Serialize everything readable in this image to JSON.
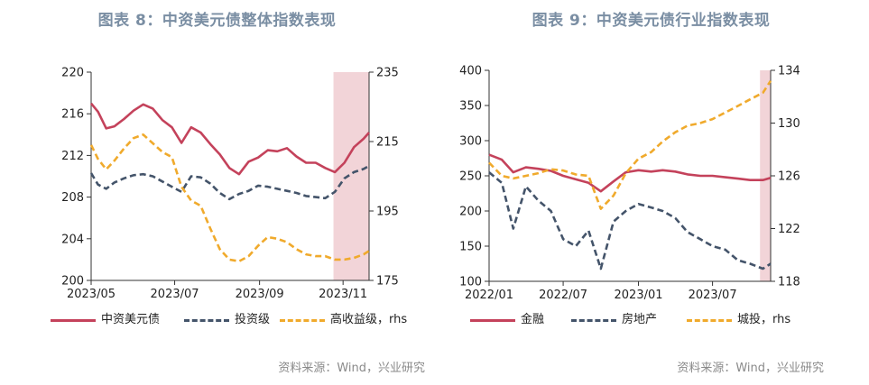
{
  "charts": [
    {
      "title": "图表 8：中资美元债整体指数表现",
      "source": "资料来源：Wind，兴业研究",
      "chart_data": {
        "type": "line",
        "x_ticks": [
          "2023/05",
          "2023/07",
          "2023/09",
          "2023/11"
        ],
        "x_range": [
          "2023-05-01",
          "2023-11-20"
        ],
        "x_tick_dates": [
          "2023-05-01",
          "2023-07-01",
          "2023-09-01",
          "2023-11-01"
        ],
        "y_left": {
          "ticks": [
            "200",
            "204",
            "208",
            "212",
            "216",
            "220"
          ],
          "min": 200,
          "max": 220
        },
        "y_right": {
          "ticks": [
            "175",
            "195",
            "215",
            "235"
          ],
          "min": 175,
          "max": 235
        },
        "highlight": {
          "from": "2023-10-25",
          "to": "2023-11-20",
          "color": "#f2d4d8"
        },
        "series": [
          {
            "name": "中资美元债",
            "axis": "left",
            "color": "#c4425b",
            "style": "solid",
            "x": [
              "2023-05-01",
              "2023-05-06",
              "2023-05-12",
              "2023-05-18",
              "2023-05-25",
              "2023-06-01",
              "2023-06-08",
              "2023-06-15",
              "2023-06-22",
              "2023-06-29",
              "2023-07-06",
              "2023-07-13",
              "2023-07-20",
              "2023-07-27",
              "2023-08-03",
              "2023-08-10",
              "2023-08-17",
              "2023-08-24",
              "2023-08-31",
              "2023-09-07",
              "2023-09-14",
              "2023-09-21",
              "2023-09-28",
              "2023-10-05",
              "2023-10-12",
              "2023-10-19",
              "2023-10-26",
              "2023-11-02",
              "2023-11-09",
              "2023-11-16",
              "2023-11-20"
            ],
            "values": [
              217,
              216.2,
              214.6,
              214.8,
              215.5,
              216.3,
              216.9,
              216.5,
              215.4,
              214.7,
              213.2,
              214.7,
              214.2,
              213.1,
              212.1,
              210.8,
              210.2,
              211.4,
              211.8,
              212.5,
              212.4,
              212.7,
              211.9,
              211.3,
              211.3,
              210.8,
              210.4,
              211.3,
              212.8,
              213.6,
              214.2
            ]
          },
          {
            "name": "投资级",
            "axis": "left",
            "color": "#44546a",
            "style": "dashed",
            "x": [
              "2023-05-01",
              "2023-05-06",
              "2023-05-12",
              "2023-05-18",
              "2023-05-25",
              "2023-06-01",
              "2023-06-08",
              "2023-06-15",
              "2023-06-22",
              "2023-06-29",
              "2023-07-06",
              "2023-07-13",
              "2023-07-20",
              "2023-07-27",
              "2023-08-03",
              "2023-08-10",
              "2023-08-17",
              "2023-08-24",
              "2023-08-31",
              "2023-09-07",
              "2023-09-14",
              "2023-09-21",
              "2023-09-28",
              "2023-10-05",
              "2023-10-12",
              "2023-10-19",
              "2023-10-26",
              "2023-11-02",
              "2023-11-09",
              "2023-11-16",
              "2023-11-20"
            ],
            "values": [
              210.3,
              209.2,
              208.8,
              209.4,
              209.8,
              210.1,
              210.2,
              210,
              209.5,
              209,
              208.5,
              210,
              209.9,
              209.3,
              208.4,
              207.8,
              208.3,
              208.6,
              209.1,
              209,
              208.8,
              208.6,
              208.4,
              208.1,
              208,
              207.9,
              208.5,
              209.8,
              210.4,
              210.7,
              211
            ]
          },
          {
            "name": "高收益级，rhs",
            "axis": "right",
            "color": "#f0aa2c",
            "style": "dashed",
            "x": [
              "2023-05-01",
              "2023-05-06",
              "2023-05-12",
              "2023-05-18",
              "2023-05-25",
              "2023-06-01",
              "2023-06-08",
              "2023-06-15",
              "2023-06-22",
              "2023-06-29",
              "2023-07-06",
              "2023-07-13",
              "2023-07-20",
              "2023-07-27",
              "2023-08-03",
              "2023-08-10",
              "2023-08-17",
              "2023-08-24",
              "2023-08-31",
              "2023-09-07",
              "2023-09-14",
              "2023-09-21",
              "2023-09-28",
              "2023-10-05",
              "2023-10-12",
              "2023-10-19",
              "2023-10-26",
              "2023-11-02",
              "2023-11-09",
              "2023-11-16",
              "2023-11-20"
            ],
            "values": [
              214,
              210,
              207,
              209.5,
              213,
              216,
              217,
              214.5,
              212,
              210.5,
              202,
              198,
              196.5,
              190,
              184,
              181,
              180.5,
              182,
              185,
              187.5,
              187,
              186,
              184,
              182.5,
              182,
              182,
              181,
              181,
              181.5,
              182.5,
              183.5
            ]
          }
        ]
      }
    },
    {
      "title": "图表 9：中资美元债行业指数表现",
      "source": "资料来源：Wind，兴业研究",
      "chart_data": {
        "type": "line",
        "x_ticks": [
          "2022/01",
          "2022/07",
          "2023/01",
          "2023/07"
        ],
        "x_range": [
          "2022-01-01",
          "2023-11-20"
        ],
        "x_tick_dates": [
          "2022-01-01",
          "2022-07-01",
          "2023-01-01",
          "2023-07-01"
        ],
        "y_left": {
          "ticks": [
            "100",
            "150",
            "200",
            "250",
            "300",
            "350",
            "400"
          ],
          "min": 100,
          "max": 400
        },
        "y_right": {
          "ticks": [
            "118",
            "122",
            "126",
            "130",
            "134"
          ],
          "min": 118,
          "max": 134
        },
        "highlight": {
          "from": "2023-10-25",
          "to": "2023-11-20",
          "color": "#f2d4d8"
        },
        "series": [
          {
            "name": "金融",
            "axis": "left",
            "color": "#c4425b",
            "style": "solid",
            "x": [
              "2022-01-01",
              "2022-02-01",
              "2022-03-01",
              "2022-04-01",
              "2022-05-01",
              "2022-06-01",
              "2022-07-01",
              "2022-08-01",
              "2022-09-01",
              "2022-10-01",
              "2022-11-01",
              "2022-12-01",
              "2023-01-01",
              "2023-02-01",
              "2023-03-01",
              "2023-04-01",
              "2023-05-01",
              "2023-06-01",
              "2023-07-01",
              "2023-08-01",
              "2023-09-01",
              "2023-10-01",
              "2023-11-01",
              "2023-11-20"
            ],
            "values": [
              280,
              273,
              255,
              262,
              260,
              257,
              250,
              245,
              240,
              228,
              242,
              255,
              258,
              256,
              258,
              256,
              252,
              250,
              250,
              248,
              246,
              244,
              244,
              247
            ]
          },
          {
            "name": "房地产",
            "axis": "left",
            "color": "#44546a",
            "style": "dashed",
            "x": [
              "2022-01-01",
              "2022-02-01",
              "2022-03-01",
              "2022-04-01",
              "2022-05-01",
              "2022-06-01",
              "2022-07-01",
              "2022-08-01",
              "2022-09-01",
              "2022-10-01",
              "2022-11-01",
              "2022-12-01",
              "2023-01-01",
              "2023-02-01",
              "2023-03-01",
              "2023-04-01",
              "2023-05-01",
              "2023-06-01",
              "2023-07-01",
              "2023-08-01",
              "2023-09-01",
              "2023-10-01",
              "2023-11-01",
              "2023-11-20"
            ],
            "values": [
              255,
              240,
              175,
              235,
              215,
              200,
              160,
              150,
              172,
              118,
              185,
              200,
              210,
              205,
              200,
              190,
              170,
              160,
              150,
              145,
              130,
              125,
              118,
              125
            ]
          },
          {
            "name": "城投，rhs",
            "axis": "right",
            "color": "#f0aa2c",
            "style": "dashed",
            "x": [
              "2022-01-01",
              "2022-02-01",
              "2022-03-01",
              "2022-04-01",
              "2022-05-01",
              "2022-06-01",
              "2022-07-01",
              "2022-08-01",
              "2022-09-01",
              "2022-10-01",
              "2022-11-01",
              "2022-12-01",
              "2023-01-01",
              "2023-02-01",
              "2023-03-01",
              "2023-04-01",
              "2023-05-01",
              "2023-06-01",
              "2023-07-01",
              "2023-08-01",
              "2023-09-01",
              "2023-10-01",
              "2023-11-01",
              "2023-11-20"
            ],
            "values": [
              127,
              126,
              125.8,
              126,
              126.2,
              126.5,
              126.4,
              126.1,
              126,
              123.5,
              124.5,
              126.2,
              127.3,
              127.8,
              128.6,
              129.3,
              129.8,
              130,
              130.3,
              130.8,
              131.3,
              131.8,
              132.3,
              133.2
            ]
          }
        ]
      }
    }
  ]
}
